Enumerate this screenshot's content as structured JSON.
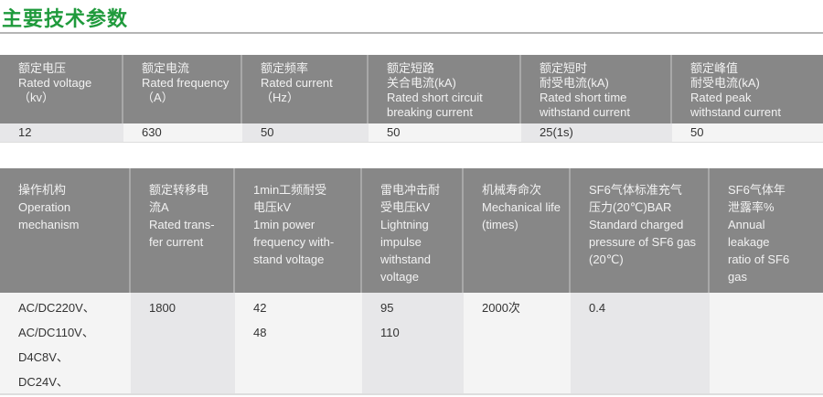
{
  "title": "主要技术参数",
  "table1": {
    "headers": [
      [
        "额定电压",
        "Rated voltage",
        "（kv）"
      ],
      [
        "额定电流",
        "Rated frequency",
        "（A）"
      ],
      [
        "额定频率",
        "Rated current",
        "（Hz）"
      ],
      [
        "额定短路",
        "关合电流(kA)",
        "Rated short circuit",
        "breaking current"
      ],
      [
        "额定短时",
        "耐受电流(kA)",
        "Rated short time",
        "withstand current"
      ],
      [
        "额定峰值",
        "耐受电流(kA)",
        "Rated peak",
        "withstand current"
      ]
    ],
    "values": [
      "12",
      "630",
      "50",
      "50",
      "25(1s)",
      "50"
    ]
  },
  "table2": {
    "headers": [
      [
        "操作机构",
        "Operation",
        "mechanism"
      ],
      [
        "额定转移电",
        "流A",
        "Rated trans-",
        "fer current"
      ],
      [
        "1min工频耐受",
        "电压kV",
        "1min power",
        "frequency with-",
        "stand voltage"
      ],
      [
        "雷电冲击耐",
        "受电压kV",
        "Lightning",
        "impulse",
        "withstand",
        "voltage"
      ],
      [
        "机械寿命次",
        "Mechanical life",
        "(times)"
      ],
      [
        "SF6气体标准充气",
        "压力(20℃)BAR",
        "Standard charged",
        "pressure of SF6 gas",
        "(20℃)"
      ],
      [
        "SF6气体年",
        "泄露率%",
        "Annual",
        "leakage",
        "ratio of SF6",
        "gas"
      ]
    ],
    "values": [
      [
        "AC/DC220V、",
        "AC/DC110V、",
        "D4C8V、",
        "DC24V、"
      ],
      [
        "1800"
      ],
      [
        "42",
        "48"
      ],
      [
        "95",
        "110"
      ],
      [
        "2000次"
      ],
      [
        "0.4"
      ],
      []
    ]
  },
  "colors": {
    "title": "#1f9a3c",
    "header_bg": "#878787"
  }
}
